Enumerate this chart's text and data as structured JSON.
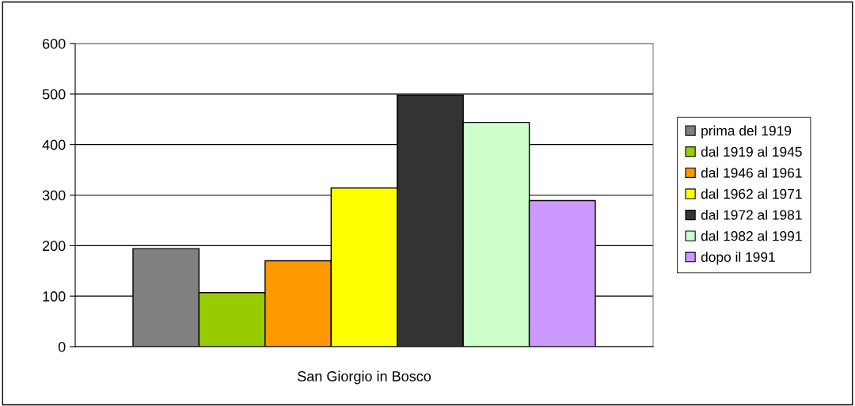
{
  "chart_data": {
    "type": "bar",
    "categories": [
      "San Giorgio in Bosco"
    ],
    "series": [
      {
        "name": "prima del 1919",
        "color": "#808080",
        "values": [
          194
        ]
      },
      {
        "name": "dal 1919 al 1945",
        "color": "#99cc00",
        "values": [
          107
        ]
      },
      {
        "name": "dal 1946 al 1961",
        "color": "#ff9900",
        "values": [
          170
        ]
      },
      {
        "name": "dal 1962 al 1971",
        "color": "#ffff00",
        "values": [
          314
        ]
      },
      {
        "name": "dal 1972 al 1981",
        "color": "#333333",
        "values": [
          498
        ]
      },
      {
        "name": "dal 1982 al 1991",
        "color": "#ccffcc",
        "values": [
          444
        ]
      },
      {
        "name": "dopo il 1991",
        "color": "#cc99ff",
        "values": [
          289
        ]
      }
    ],
    "ylim": [
      0,
      600
    ],
    "yticks": [
      0,
      100,
      200,
      300,
      400,
      500,
      600
    ],
    "grid": "y",
    "legend": "right"
  }
}
